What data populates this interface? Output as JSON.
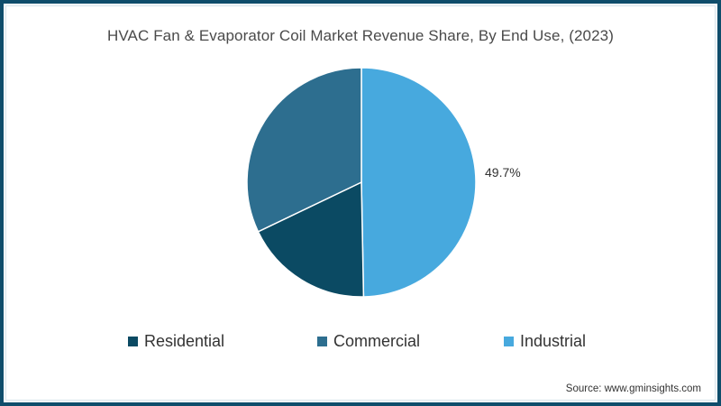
{
  "chart_data": {
    "type": "pie",
    "title": "HVAC Fan & Evaporator Coil Market Revenue Share, By End Use, (2023)",
    "categories": [
      "Residential",
      "Commercial",
      "Industrial"
    ],
    "values": [
      18.2,
      32.1,
      49.7
    ],
    "colors": [
      "#0b4a63",
      "#2d6e8f",
      "#47a9de"
    ],
    "data_labels": [
      {
        "category": "Industrial",
        "text": "49.7%"
      }
    ],
    "legend_position": "bottom",
    "start_angle_deg": 0,
    "direction": "clockwise",
    "slice_order_drawn": [
      "Industrial",
      "Residential",
      "Commercial"
    ]
  },
  "title": "HVAC Fan & Evaporator Coil Market Revenue Share, By End Use, (2023)",
  "label_industrial": "49.7%",
  "legend": [
    {
      "label": "Residential",
      "color": "#0b4a63"
    },
    {
      "label": "Commercial",
      "color": "#2d6e8f"
    },
    {
      "label": "Industrial",
      "color": "#47a9de"
    }
  ],
  "source": "Source: www.gminsights.com",
  "frame_color": "#0f4d6b"
}
